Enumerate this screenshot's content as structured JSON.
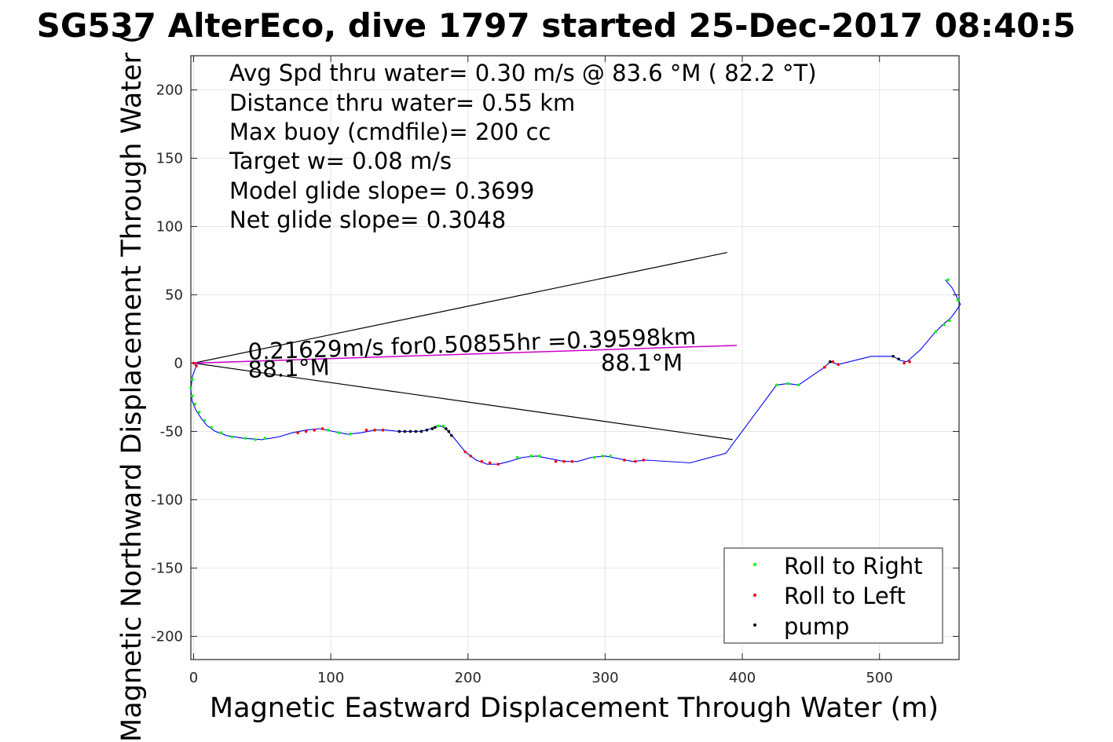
{
  "chart_data": {
    "type": "scatter",
    "title": "SG537 AlterEco, dive 1797 started 25-Dec-2017 08:40:5",
    "xlabel": "Magnetic Eastward Displacement Through Water (m)",
    "ylabel": "Magnetic Northward Displacement Through Water (",
    "xlim": [
      -2,
      558
    ],
    "ylim": [
      -217,
      225
    ],
    "xticks": [
      0,
      100,
      200,
      300,
      400,
      500
    ],
    "yticks": [
      -200,
      -150,
      -100,
      -50,
      0,
      50,
      100,
      150,
      200
    ],
    "grid": true,
    "legend_position": "bottom-right",
    "stats_lines": [
      "Avg Spd thru water=  0.30 m/s @  83.6 °M ( 82.2 °T)",
      "Distance thru water=  0.55 km",
      "Max buoy (cmdfile)= 200 cc",
      "Target w= 0.08 m/s",
      "Model glide slope= 0.3699",
      "Net glide slope= 0.3048"
    ],
    "annotations": {
      "current_label": "0.21629m/s for0.50855hr =0.39598km",
      "heading_start": "88.1°M",
      "heading_end": "88.1°M"
    },
    "cone_lines": [
      {
        "name": "upper",
        "x": [
          0,
          389
        ],
        "y": [
          0,
          81
        ]
      },
      {
        "name": "lower",
        "x": [
          0,
          393
        ],
        "y": [
          0,
          -56
        ]
      }
    ],
    "current_vector": {
      "x": [
        0,
        396
      ],
      "y": [
        0,
        13
      ]
    },
    "track": {
      "color": "#0000ff",
      "x": [
        0,
        2,
        -1,
        -2,
        -1,
        2,
        6,
        10,
        16,
        24,
        36,
        50,
        62,
        72,
        82,
        92,
        102,
        112,
        122,
        132,
        140,
        150,
        158,
        164,
        170,
        176,
        180,
        184,
        190,
        198,
        206,
        214,
        222,
        230,
        240,
        250,
        260,
        270,
        280,
        290,
        300,
        310,
        320,
        330,
        362,
        388,
        425,
        433,
        441,
        460,
        464,
        470,
        494,
        510,
        515,
        520,
        530,
        540,
        546,
        552,
        557,
        559,
        553,
        548
      ],
      "y": [
        0,
        -2,
        -10,
        -20,
        -28,
        -35,
        -41,
        -46,
        -50,
        -53,
        -55,
        -56,
        -54,
        -51,
        -49,
        -48,
        -50,
        -52,
        -51,
        -49,
        -49,
        -50,
        -50,
        -50,
        -49,
        -47,
        -46,
        -48,
        -55,
        -65,
        -71,
        -74,
        -74,
        -72,
        -69,
        -68,
        -70,
        -72,
        -72,
        -69,
        -68,
        -70,
        -72,
        -71,
        -73,
        -66,
        -16,
        -15,
        -16,
        -3,
        1,
        -1,
        5,
        5,
        2,
        1,
        10,
        22,
        28,
        33,
        40,
        43,
        55,
        61
      ]
    },
    "series": [
      {
        "name": "Roll to Right",
        "color": "#00ff00",
        "x": [
          -1,
          -2,
          -1,
          1,
          4,
          8,
          13,
          20,
          28,
          38,
          45,
          52,
          98,
          106,
          114,
          178,
          182,
          236,
          246,
          252,
          292,
          298,
          304,
          425,
          433,
          441,
          541,
          547,
          551,
          557,
          550
        ],
        "y": [
          -12,
          -18,
          -24,
          -30,
          -36,
          -42,
          -47,
          -51,
          -54,
          -55,
          -56,
          -55,
          -49,
          -51,
          -52,
          -46,
          -46,
          -69,
          -68,
          -68,
          -69,
          -68,
          -68,
          -16,
          -15,
          -16,
          23,
          28,
          31,
          46,
          61
        ]
      },
      {
        "name": "Roll to Left",
        "color": "#ff0000",
        "x": [
          0,
          2,
          76,
          82,
          88,
          94,
          126,
          132,
          138,
          198,
          202,
          210,
          216,
          222,
          264,
          270,
          276,
          314,
          322,
          328,
          460,
          466,
          470,
          518,
          522
        ],
        "y": [
          0,
          -2,
          -51,
          -50,
          -49,
          -48,
          -49,
          -49,
          -49,
          -65,
          -68,
          -72,
          -73,
          -74,
          -72,
          -72,
          -72,
          -71,
          -72,
          -71,
          -3,
          1,
          -1,
          0,
          1
        ]
      },
      {
        "name": "pump",
        "color": "#000000",
        "x": [
          150,
          154,
          158,
          162,
          166,
          170,
          174,
          176,
          184,
          186,
          188,
          464,
          510,
          514
        ],
        "y": [
          -50,
          -50,
          -50,
          -50,
          -50,
          -49,
          -48,
          -47,
          -48,
          -50,
          -53,
          1,
          5,
          3
        ]
      }
    ]
  }
}
